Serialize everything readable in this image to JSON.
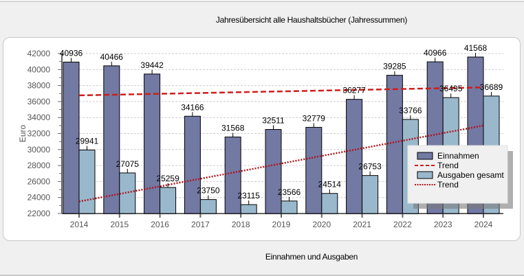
{
  "window": {
    "title": "Jahresübersicht alle Haushaltsbücher (Jahressummen)",
    "subtitle": "Einnahmen und Ausgaben"
  },
  "colors": {
    "einnahmen": "#7279a3",
    "ausgaben": "#9ab8cc",
    "trend_einnahmen": "#d01c1c",
    "trend_ausgaben": "#b0141e"
  },
  "chart_data": {
    "type": "bar",
    "title": "Jahresübersicht alle Haushaltsbücher (Jahressummen)",
    "subtitle": "Einnahmen und Ausgaben",
    "xlabel": "",
    "ylabel": "Euro",
    "ylim": [
      22000,
      42000
    ],
    "yticks": [
      22000,
      24000,
      26000,
      28000,
      30000,
      32000,
      34000,
      36000,
      38000,
      40000,
      42000
    ],
    "grid": true,
    "legend_position": "bottom-right",
    "categories": [
      "2014",
      "2015",
      "2016",
      "2017",
      "2018",
      "2019",
      "2020",
      "2021",
      "2022",
      "2023",
      "2024"
    ],
    "series": [
      {
        "name": "Einnahmen",
        "type": "bar",
        "values": [
          40936,
          40466,
          39442,
          34166,
          31568,
          32511,
          32779,
          36277,
          39285,
          40966,
          41568
        ]
      },
      {
        "name": "Trend",
        "type": "line",
        "style": "dashed",
        "of": "Einnahmen",
        "values": [
          36770,
          36870,
          36970,
          37070,
          37170,
          37270,
          37370,
          37470,
          37570,
          37670,
          37770
        ]
      },
      {
        "name": "Ausgaben gesamt",
        "type": "bar",
        "values": [
          29941,
          27075,
          25259,
          23750,
          23115,
          23566,
          24514,
          26753,
          33766,
          36495,
          36689
        ]
      },
      {
        "name": "Trend",
        "type": "line",
        "style": "dotted",
        "of": "Ausgaben gesamt",
        "values": [
          23500,
          24450,
          25400,
          26350,
          27300,
          28250,
          29200,
          30150,
          31100,
          32050,
          33000
        ]
      }
    ],
    "legend": [
      "Einnahmen",
      "Trend",
      "Ausgaben gesamt",
      "Trend"
    ]
  }
}
